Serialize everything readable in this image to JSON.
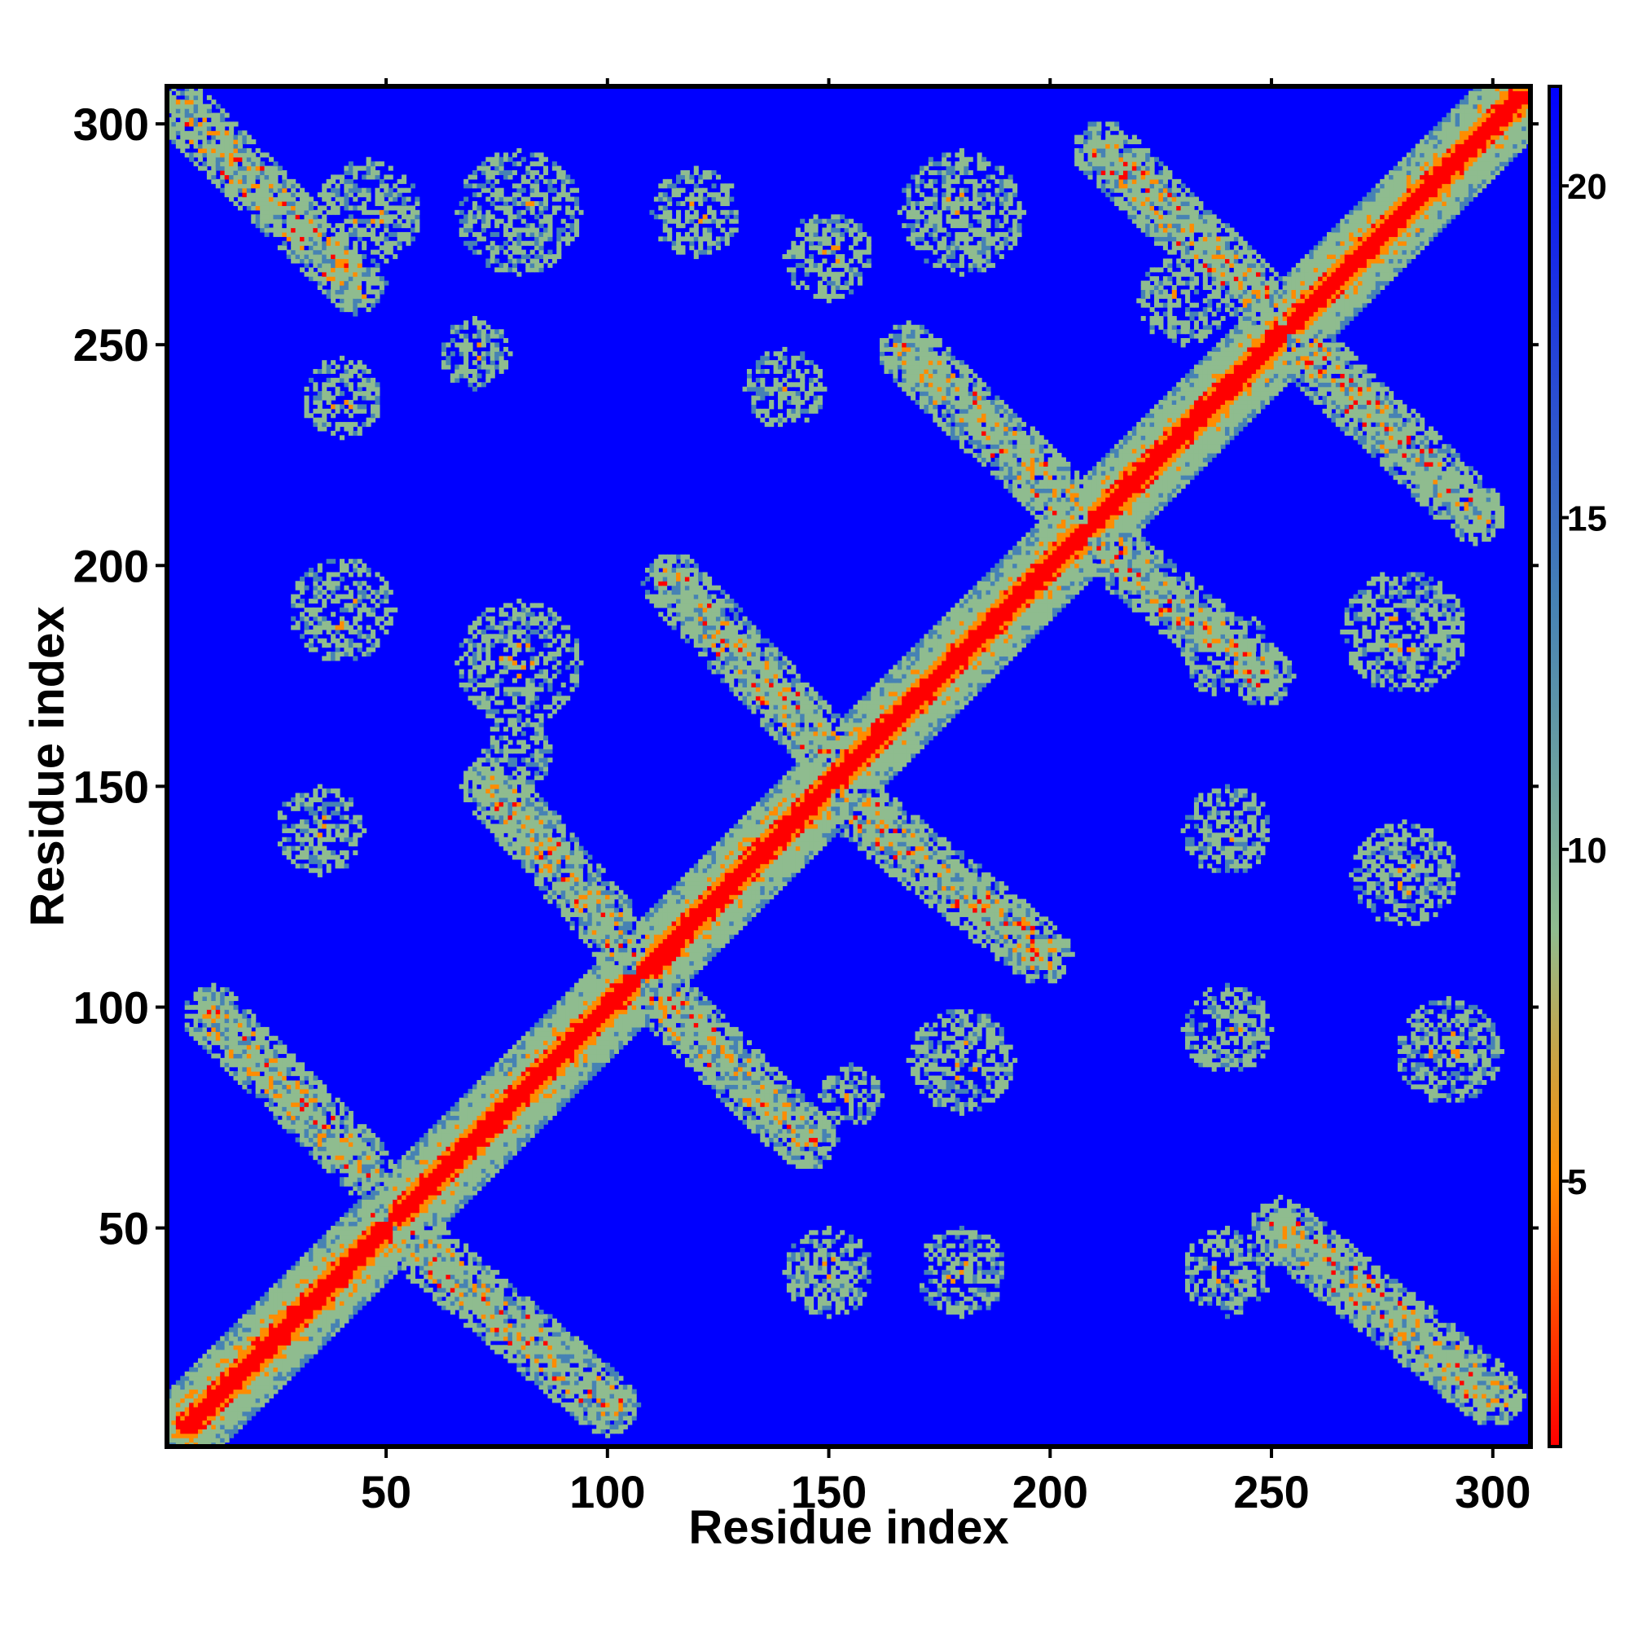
{
  "chart_data": {
    "type": "heatmap",
    "title": "",
    "xlabel": "Residue index",
    "ylabel": "Residue index",
    "n_residues": 308,
    "xlim": [
      1,
      308
    ],
    "ylim": [
      1,
      308
    ],
    "x_ticks": [
      50,
      100,
      150,
      200,
      250,
      300
    ],
    "y_ticks": [
      50,
      100,
      150,
      200,
      250,
      300
    ],
    "colorbar": {
      "ticks": [
        5,
        10,
        15,
        20
      ],
      "range": [
        1,
        21.5
      ],
      "colors": [
        "#ff0000",
        "#ff8c00",
        "#8fbc8f",
        "#4682b4",
        "#0000ff"
      ]
    },
    "background_value": 21.5,
    "colors": {
      "background": "#0000ff",
      "diagonal_core": "#ff0000",
      "contact_near": "#ff8c00",
      "contact_mid": "#8fbc8f",
      "contact_far": "#4682b4"
    },
    "contact_features": [
      {
        "kind": "band",
        "from": [
          5,
          5
        ],
        "to": [
          306,
          306
        ],
        "half_width": 9,
        "description": "main diagonal"
      },
      {
        "kind": "band",
        "from": [
          5,
          302
        ],
        "to": [
          43,
          264
        ],
        "half_width": 7
      },
      {
        "kind": "band",
        "from": [
          11,
          98
        ],
        "to": [
          45,
          64
        ],
        "half_width": 7
      },
      {
        "kind": "band",
        "from": [
          50,
          52
        ],
        "to": [
          100,
          10
        ],
        "half_width": 7
      },
      {
        "kind": "band",
        "from": [
          74,
          150
        ],
        "to": [
          106,
          112
        ],
        "half_width": 7
      },
      {
        "kind": "band",
        "from": [
          106,
          108
        ],
        "to": [
          145,
          70
        ],
        "half_width": 7
      },
      {
        "kind": "band",
        "from": [
          115,
          196
        ],
        "to": [
          150,
          158
        ],
        "half_width": 7
      },
      {
        "kind": "band",
        "from": [
          150,
          150
        ],
        "to": [
          198,
          112
        ],
        "half_width": 7
      },
      {
        "kind": "band",
        "from": [
          168,
          248
        ],
        "to": [
          208,
          210
        ],
        "half_width": 7
      },
      {
        "kind": "band",
        "from": [
          208,
          208
        ],
        "to": [
          248,
          175
        ],
        "half_width": 7
      },
      {
        "kind": "band",
        "from": [
          212,
          294
        ],
        "to": [
          253,
          255
        ],
        "half_width": 7
      },
      {
        "kind": "band",
        "from": [
          253,
          253
        ],
        "to": [
          296,
          212
        ],
        "half_width": 7
      },
      {
        "kind": "band",
        "from": [
          252,
          50
        ],
        "to": [
          300,
          12
        ],
        "half_width": 7
      },
      {
        "kind": "patch",
        "center": [
          46,
          280
        ],
        "radius": 12
      },
      {
        "kind": "patch",
        "center": [
          40,
          238
        ],
        "radius": 9
      },
      {
        "kind": "patch",
        "center": [
          35,
          140
        ],
        "radius": 10
      },
      {
        "kind": "patch",
        "center": [
          80,
          280
        ],
        "radius": 14
      },
      {
        "kind": "patch",
        "center": [
          140,
          240
        ],
        "radius": 9
      },
      {
        "kind": "patch",
        "center": [
          70,
          248
        ],
        "radius": 8
      },
      {
        "kind": "patch",
        "center": [
          120,
          280
        ],
        "radius": 10
      },
      {
        "kind": "patch",
        "center": [
          150,
          270
        ],
        "radius": 10
      },
      {
        "kind": "patch",
        "center": [
          180,
          280
        ],
        "radius": 14
      },
      {
        "kind": "patch",
        "center": [
          80,
          178
        ],
        "radius": 14
      },
      {
        "kind": "patch",
        "center": [
          40,
          190
        ],
        "radius": 12
      },
      {
        "kind": "patch",
        "center": [
          80,
          158
        ],
        "radius": 8
      },
      {
        "kind": "patch",
        "center": [
          150,
          40
        ],
        "radius": 10
      },
      {
        "kind": "patch",
        "center": [
          180,
          40
        ],
        "radius": 10
      },
      {
        "kind": "patch",
        "center": [
          180,
          88
        ],
        "radius": 12
      },
      {
        "kind": "patch",
        "center": [
          155,
          80
        ],
        "radius": 7
      },
      {
        "kind": "patch",
        "center": [
          240,
          40
        ],
        "radius": 10
      },
      {
        "kind": "patch",
        "center": [
          240,
          95
        ],
        "radius": 10
      },
      {
        "kind": "patch",
        "center": [
          290,
          90
        ],
        "radius": 12
      },
      {
        "kind": "patch",
        "center": [
          240,
          140
        ],
        "radius": 10
      },
      {
        "kind": "patch",
        "center": [
          280,
          130
        ],
        "radius": 12
      },
      {
        "kind": "patch",
        "center": [
          280,
          185
        ],
        "radius": 14
      },
      {
        "kind": "patch",
        "center": [
          240,
          180
        ],
        "radius": 10
      },
      {
        "kind": "patch",
        "center": [
          230,
          260
        ],
        "radius": 10
      }
    ]
  }
}
